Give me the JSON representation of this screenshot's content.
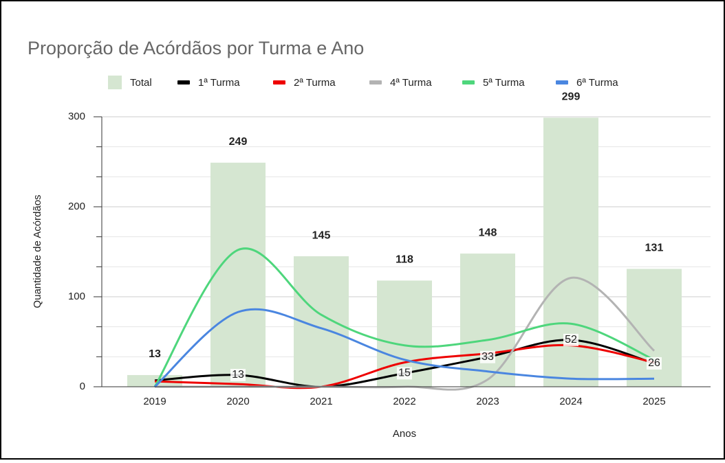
{
  "chart_data": {
    "type": "combo",
    "title": "Proporção de Acórdãos por Turma e Ano",
    "x_label": "Anos",
    "y_label": "Quantidade de Acórdãos",
    "categories": [
      "2019",
      "2020",
      "2021",
      "2022",
      "2023",
      "2024",
      "2025"
    ],
    "ylim": [
      0,
      300
    ],
    "yticks": [
      0,
      100,
      200,
      300
    ],
    "grid": true,
    "minor_grid_per_major": 2,
    "series": [
      {
        "name": "Total",
        "kind": "bar",
        "color": "#d5e6d1",
        "values": [
          13,
          249,
          145,
          118,
          148,
          299,
          131
        ],
        "value_labels": [
          "13",
          "249",
          "145",
          "118",
          "148",
          "299",
          "131"
        ]
      },
      {
        "name": "1ª Turma",
        "kind": "line",
        "color": "#000000",
        "values": [
          7,
          13,
          0,
          15,
          33,
          52,
          26
        ],
        "value_labels": [
          null,
          "13",
          null,
          "15",
          "33",
          "52",
          "26"
        ]
      },
      {
        "name": "2ª Turma",
        "kind": "line",
        "color": "#ee0000",
        "values": [
          6,
          3,
          0,
          27,
          37,
          46,
          27
        ]
      },
      {
        "name": "4ª Turma",
        "kind": "line",
        "color": "#b3b3b3",
        "values": [
          0,
          0,
          0,
          0,
          8,
          121,
          40
        ]
      },
      {
        "name": "5ª Turma",
        "kind": "line",
        "color": "#4ed67c",
        "values": [
          0,
          152,
          80,
          46,
          52,
          70,
          30
        ]
      },
      {
        "name": "6ª Turma",
        "kind": "line",
        "color": "#4a86e0",
        "values": [
          0,
          83,
          65,
          30,
          17,
          9,
          9
        ]
      }
    ]
  }
}
